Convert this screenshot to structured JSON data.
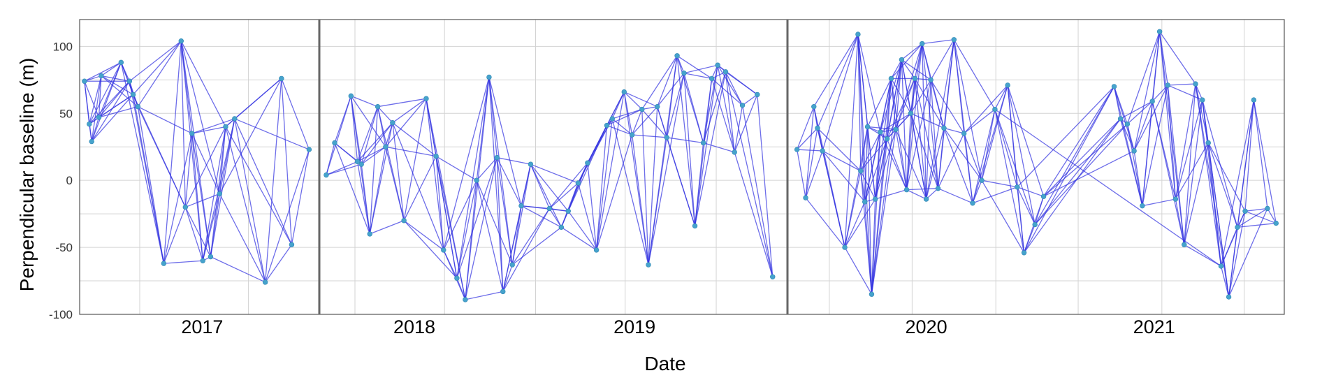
{
  "chart_data": {
    "type": "scatter",
    "ylabel": "Perpendicular baseline (m)",
    "xlabel": "Date",
    "ylim": [
      -100,
      120
    ],
    "yticks": [
      -100,
      -50,
      0,
      50,
      100
    ],
    "year_labels": [
      "2017",
      "2018",
      "2019",
      "2020",
      "2021"
    ],
    "grid": true,
    "colors": {
      "edge": "#3535e0",
      "point": "#46a3cc",
      "grid": "#d3d3d3",
      "frame": "#555555",
      "separator": "#666666"
    },
    "series": [
      {
        "points": [
          [
            "2016-10-01",
            74
          ],
          [
            "2016-10-09",
            42
          ],
          [
            "2016-10-13",
            29
          ],
          [
            "2016-10-25",
            47
          ],
          [
            "2016-10-29",
            78
          ],
          [
            "2016-12-01",
            88
          ],
          [
            "2016-12-15",
            74
          ],
          [
            "2016-12-21",
            64
          ],
          [
            "2016-12-29",
            55
          ],
          [
            "2017-02-10",
            -62
          ],
          [
            "2017-03-11",
            104
          ],
          [
            "2017-03-18",
            -20
          ],
          [
            "2017-03-29",
            35
          ],
          [
            "2017-04-16",
            -60
          ],
          [
            "2017-04-29",
            -57
          ],
          [
            "2017-05-14",
            -10
          ],
          [
            "2017-05-24",
            40
          ],
          [
            "2017-06-08",
            46
          ],
          [
            "2017-07-29",
            -76
          ],
          [
            "2017-08-25",
            76
          ],
          [
            "2017-09-11",
            -48
          ],
          [
            "2017-10-10",
            23
          ],
          [
            "2017-11-04",
            4
          ],
          [
            "2017-11-21",
            28
          ],
          [
            "2017-12-24",
            63
          ],
          [
            "2018-01-06",
            14
          ],
          [
            "2018-01-14",
            12
          ],
          [
            "2018-01-31",
            -40
          ],
          [
            "2018-02-16",
            55
          ],
          [
            "2018-03-04",
            25
          ],
          [
            "2018-03-18",
            43
          ],
          [
            "2018-04-10",
            -30
          ],
          [
            "2018-05-25",
            61
          ],
          [
            "2018-06-14",
            18
          ],
          [
            "2018-06-29",
            -52
          ],
          [
            "2018-07-26",
            -73
          ],
          [
            "2018-08-12",
            -89
          ],
          [
            "2018-09-04",
            0
          ],
          [
            "2018-09-29",
            77
          ],
          [
            "2018-10-15",
            17
          ],
          [
            "2018-10-27",
            -83
          ],
          [
            "2018-11-15",
            -63
          ],
          [
            "2018-12-03",
            -19
          ],
          [
            "2018-12-22",
            12
          ],
          [
            "2019-01-29",
            -21
          ],
          [
            "2019-02-22",
            -35
          ],
          [
            "2019-03-08",
            -23
          ],
          [
            "2019-03-28",
            -2
          ],
          [
            "2019-04-16",
            13
          ],
          [
            "2019-05-04",
            -52
          ],
          [
            "2019-05-25",
            41
          ],
          [
            "2019-06-05",
            46
          ],
          [
            "2019-06-29",
            66
          ],
          [
            "2019-07-15",
            34
          ],
          [
            "2019-08-04",
            53
          ],
          [
            "2019-08-17",
            -63
          ],
          [
            "2019-09-04",
            55
          ],
          [
            "2019-09-23",
            32
          ],
          [
            "2019-10-14",
            93
          ],
          [
            "2019-10-28",
            80
          ],
          [
            "2019-11-19",
            -34
          ],
          [
            "2019-12-06",
            28
          ],
          [
            "2019-12-23",
            76
          ],
          [
            "2020-01-04",
            86
          ],
          [
            "2020-01-20",
            81
          ],
          [
            "2020-02-07",
            21
          ],
          [
            "2020-02-23",
            56
          ],
          [
            "2020-03-24",
            64
          ],
          [
            "2020-04-24",
            -72
          ],
          [
            "2019-10-22",
            23
          ],
          [
            "2019-11-10",
            -13
          ],
          [
            "2019-11-28",
            55
          ],
          [
            "2019-12-06",
            39
          ],
          [
            "2019-12-17",
            22
          ],
          [
            "2020-02-04",
            -50
          ],
          [
            "2020-03-04",
            109
          ],
          [
            "2020-03-10",
            7
          ],
          [
            "2020-03-19",
            -16
          ],
          [
            "2020-03-25",
            40
          ],
          [
            "2020-04-03",
            -85
          ],
          [
            "2020-04-11",
            -14
          ],
          [
            "2020-04-22",
            36
          ],
          [
            "2020-05-07",
            31
          ],
          [
            "2020-05-16",
            76
          ],
          [
            "2020-05-26",
            38
          ],
          [
            "2020-06-08",
            90
          ],
          [
            "2020-06-19",
            -7
          ],
          [
            "2020-06-28",
            50
          ],
          [
            "2020-07-07",
            76
          ],
          [
            "2020-07-23",
            102
          ],
          [
            "2020-08-01",
            -14
          ],
          [
            "2020-08-11",
            75
          ],
          [
            "2020-08-27",
            -6
          ],
          [
            "2020-09-09",
            39
          ],
          [
            "2020-10-01",
            105
          ],
          [
            "2020-10-23",
            35
          ],
          [
            "2020-11-11",
            -17
          ],
          [
            "2020-12-01",
            0
          ],
          [
            "2020-12-30",
            53
          ],
          [
            "2021-01-27",
            71
          ],
          [
            "2021-02-17",
            -5
          ],
          [
            "2021-03-04",
            -54
          ],
          [
            "2021-03-28",
            -33
          ],
          [
            "2021-04-16",
            -12
          ],
          [
            "2021-09-18",
            70
          ],
          [
            "2021-10-02",
            46
          ],
          [
            "2021-10-17",
            42
          ],
          [
            "2021-11-01",
            22
          ],
          [
            "2021-11-19",
            -19
          ],
          [
            "2021-12-11",
            59
          ],
          [
            "2021-12-27",
            111
          ],
          [
            "2022-01-14",
            71
          ],
          [
            "2022-01-31",
            -14
          ],
          [
            "2022-02-19",
            -48
          ],
          [
            "2022-03-16",
            72
          ],
          [
            "2022-03-31",
            60
          ],
          [
            "2022-04-13",
            28
          ],
          [
            "2022-05-11",
            -64
          ],
          [
            "2022-05-28",
            -87
          ],
          [
            "2022-06-16",
            -35
          ],
          [
            "2022-07-03",
            -23
          ],
          [
            "2022-07-22",
            60
          ],
          [
            "2022-08-21",
            -21
          ],
          [
            "2022-09-09",
            -32
          ]
        ]
      }
    ]
  }
}
